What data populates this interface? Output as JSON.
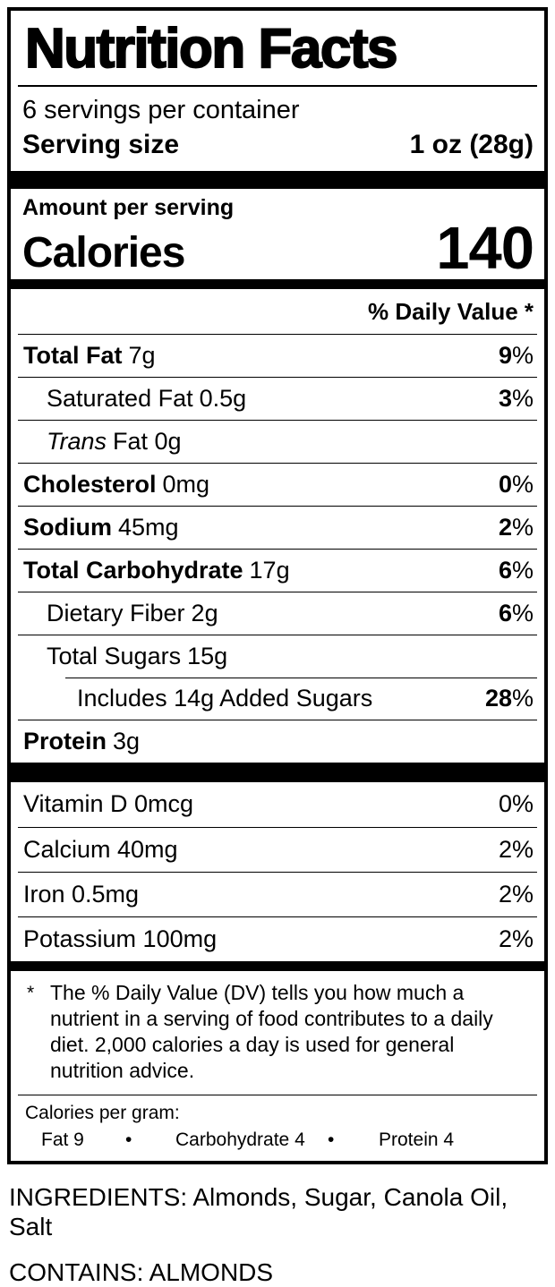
{
  "label": {
    "title": "Nutrition Facts",
    "servings_per_container": "6 servings per container",
    "serving_size_label": "Serving size",
    "serving_size_value": "1 oz (28g)",
    "amount_per_serving": "Amount per serving",
    "calories_label": "Calories",
    "calories_value": "140",
    "daily_value_header": "% Daily Value *",
    "percent_sign": "%",
    "nutrients": [
      {
        "name": "Total Fat",
        "amount": "7g",
        "dv": "9"
      },
      {
        "name": "Saturated Fat",
        "amount": "0.5g",
        "dv": "3"
      },
      {
        "name": "Trans",
        "amount": "Fat 0g",
        "dv": ""
      },
      {
        "name": "Cholesterol",
        "amount": "0mg",
        "dv": "0"
      },
      {
        "name": "Sodium",
        "amount": "45mg",
        "dv": "2"
      },
      {
        "name": "Total Carbohydrate",
        "amount": "17g",
        "dv": "6"
      },
      {
        "name": "Dietary Fiber",
        "amount": "2g",
        "dv": "6"
      },
      {
        "name": "Total Sugars",
        "amount": "15g",
        "dv": ""
      },
      {
        "name": "Includes 14g Added Sugars",
        "amount": "",
        "dv": "28"
      },
      {
        "name": "Protein",
        "amount": "3g",
        "dv": ""
      }
    ],
    "vitamins": [
      {
        "name": "Vitamin D 0mcg",
        "dv": "0"
      },
      {
        "name": "Calcium 40mg",
        "dv": "2"
      },
      {
        "name": "Iron 0.5mg",
        "dv": "2"
      },
      {
        "name": "Potassium 100mg",
        "dv": "2"
      }
    ],
    "footnote_marker": "*",
    "footnote_lines": [
      "The % Daily Value (DV) tells you how much a",
      "nutrient in a serving of food contributes to a daily",
      "diet. 2,000 calories a day is used for general",
      "nutrition advice."
    ],
    "calories_per_gram": {
      "heading": "Calories per gram:",
      "fat": "Fat 9",
      "bullet1": "•",
      "carbohydrate": "Carbohydrate 4",
      "bullet2": "•",
      "protein": "Protein 4"
    }
  },
  "below": {
    "ingredients": "INGREDIENTS: Almonds, Sugar, Canola Oil, Salt",
    "contains": "CONTAINS: ALMONDS"
  },
  "colors": {
    "foreground": "#000000",
    "background": "#ffffff"
  }
}
